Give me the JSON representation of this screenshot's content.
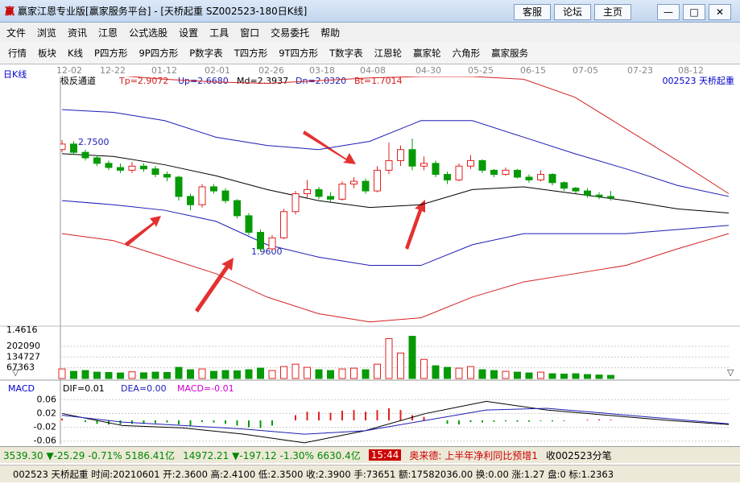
{
  "window": {
    "title": "赢家江恩专业版[赢家服务平台] - [天桥起重  SZ002523-180日K线]",
    "buttons": [
      "客服",
      "论坛",
      "主页"
    ]
  },
  "menu": [
    "文件",
    "浏览",
    "资讯",
    "江恩",
    "公式选股",
    "设置",
    "工具",
    "窗口",
    "交易委托",
    "帮助"
  ],
  "toolbar": [
    "行情",
    "板块",
    "K线",
    "P四方形",
    "9P四方形",
    "P数字表",
    "T四方形",
    "9T四方形",
    "T数字表",
    "江恩轮",
    "赢家轮",
    "六角形",
    "赢家服务"
  ],
  "chart": {
    "period": "日K线",
    "dates": [
      "12-02",
      "12-22",
      "01-12",
      "02-01",
      "02-26",
      "03-18",
      "04-08",
      "04-30",
      "05-25",
      "06-15",
      "07-05",
      "07-23",
      "08-12"
    ],
    "indicator": "极反通道",
    "params": [
      "Tp=2.9072",
      "Up=2.6680",
      "Md=2.3937",
      "Dn=2.0320",
      "Bt=1.7014"
    ],
    "stock": "002523  天桥起重",
    "annotations": [
      "2.7500",
      "1.9600"
    ],
    "price_low": "1.4616",
    "ylim": [
      1.39,
      3.23
    ],
    "candles": {
      "open": [
        2.7,
        2.74,
        2.68,
        2.64,
        2.6,
        2.57,
        2.55,
        2.58,
        2.56,
        2.52,
        2.5,
        2.36,
        2.3,
        2.43,
        2.4,
        2.33,
        2.22,
        2.1,
        1.98,
        2.06,
        2.25,
        2.38,
        2.41,
        2.36,
        2.34,
        2.45,
        2.47,
        2.4,
        2.55,
        2.62,
        2.7,
        2.58,
        2.6,
        2.52,
        2.48,
        2.58,
        2.62,
        2.55,
        2.52,
        2.55,
        2.5,
        2.48,
        2.52,
        2.46,
        2.42,
        2.4,
        2.37,
        2.36
      ],
      "close": [
        2.74,
        2.68,
        2.64,
        2.6,
        2.57,
        2.55,
        2.58,
        2.56,
        2.52,
        2.5,
        2.36,
        2.3,
        2.43,
        2.4,
        2.33,
        2.22,
        2.1,
        1.98,
        2.06,
        2.25,
        2.38,
        2.41,
        2.36,
        2.34,
        2.45,
        2.47,
        2.4,
        2.55,
        2.62,
        2.7,
        2.58,
        2.6,
        2.52,
        2.48,
        2.58,
        2.62,
        2.55,
        2.52,
        2.55,
        2.5,
        2.48,
        2.52,
        2.46,
        2.42,
        2.4,
        2.37,
        2.36,
        2.35
      ],
      "high": [
        2.77,
        2.76,
        2.7,
        2.66,
        2.62,
        2.6,
        2.61,
        2.6,
        2.58,
        2.54,
        2.51,
        2.38,
        2.45,
        2.45,
        2.42,
        2.34,
        2.24,
        2.12,
        2.08,
        2.27,
        2.4,
        2.48,
        2.43,
        2.39,
        2.47,
        2.5,
        2.49,
        2.58,
        2.75,
        2.73,
        2.78,
        2.65,
        2.62,
        2.54,
        2.6,
        2.66,
        2.63,
        2.56,
        2.57,
        2.56,
        2.52,
        2.55,
        2.53,
        2.47,
        2.43,
        2.42,
        2.39,
        2.4
      ],
      "low": [
        2.68,
        2.66,
        2.62,
        2.58,
        2.55,
        2.53,
        2.53,
        2.54,
        2.5,
        2.47,
        2.33,
        2.26,
        2.28,
        2.38,
        2.31,
        2.2,
        2.08,
        1.96,
        1.97,
        2.05,
        2.23,
        2.35,
        2.34,
        2.32,
        2.33,
        2.42,
        2.38,
        2.39,
        2.52,
        2.58,
        2.55,
        2.55,
        2.5,
        2.45,
        2.47,
        2.56,
        2.53,
        2.5,
        2.51,
        2.49,
        2.46,
        2.47,
        2.44,
        2.4,
        2.38,
        2.35,
        2.34,
        2.33
      ],
      "volume": [
        60000,
        45000,
        50000,
        40000,
        38000,
        35000,
        42000,
        36000,
        40000,
        38000,
        70000,
        55000,
        60000,
        45000,
        50000,
        48000,
        55000,
        65000,
        50000,
        75000,
        90000,
        70000,
        55000,
        50000,
        60000,
        65000,
        55000,
        90000,
        250000,
        160000,
        265000,
        120000,
        80000,
        70000,
        65000,
        75000,
        55000,
        50000,
        45000,
        40000,
        35000,
        40000,
        30000,
        28000,
        30000,
        25000,
        22000,
        20000
      ]
    },
    "bands": [
      {
        "color": "#d42020",
        "values": [
          3.26,
          3.24,
          3.21,
          3.19,
          3.18,
          3.2,
          3.22,
          3.23,
          3.23,
          3.21,
          3.08,
          2.85,
          2.62,
          2.38
        ]
      },
      {
        "color": "#1c1cb4",
        "values": [
          2.99,
          2.97,
          2.91,
          2.79,
          2.73,
          2.7,
          2.76,
          2.91,
          2.91,
          2.79,
          2.67,
          2.56,
          2.44,
          2.36
        ]
      },
      {
        "color": "#000000",
        "values": [
          2.67,
          2.65,
          2.59,
          2.51,
          2.41,
          2.33,
          2.28,
          2.3,
          2.41,
          2.43,
          2.38,
          2.33,
          2.27,
          2.24
        ]
      },
      {
        "color": "#1c1cb4",
        "values": [
          2.33,
          2.3,
          2.26,
          2.18,
          2.01,
          1.92,
          1.86,
          1.86,
          2.01,
          2.09,
          2.09,
          2.09,
          2.12,
          2.15
        ]
      },
      {
        "color": "#d42020",
        "values": [
          2.09,
          2.04,
          1.92,
          1.8,
          1.63,
          1.51,
          1.45,
          1.48,
          1.63,
          1.74,
          1.8,
          1.86,
          1.98,
          2.09
        ]
      }
    ],
    "vlim": [
      0,
      303000
    ],
    "vticks": [
      67363,
      134727,
      202090
    ],
    "macd": {
      "label": "MACD",
      "dif_label": "DIF=0.01",
      "dea_label": "DEA=0.00",
      "macd_label": "MACD=-0.01",
      "ylim": [
        -0.07,
        0.07
      ],
      "yticks": [
        0.06,
        0.02,
        -0.02,
        -0.06
      ],
      "bars": [
        0.005,
        0.0,
        -0.005,
        -0.01,
        -0.012,
        -0.012,
        -0.01,
        -0.01,
        -0.008,
        -0.006,
        -0.012,
        -0.015,
        -0.005,
        -0.006,
        -0.01,
        -0.015,
        -0.02,
        -0.022,
        -0.015,
        0.0,
        0.015,
        0.025,
        0.025,
        0.022,
        0.028,
        0.03,
        0.025,
        0.03,
        0.035,
        0.03,
        0.015,
        0.01,
        0.0,
        -0.01,
        -0.012,
        -0.005,
        -0.006,
        -0.004,
        -0.003,
        -0.004,
        -0.004,
        -0.002,
        -0.003,
        -0.002,
        0.0,
        0.002,
        0.003,
        0.002
      ],
      "dif": [
        0.02,
        -0.015,
        -0.022,
        -0.04,
        -0.065,
        -0.03,
        0.02,
        0.055,
        0.03,
        0.015,
        0.0,
        -0.012
      ],
      "dea": [
        0.015,
        -0.005,
        -0.015,
        -0.025,
        -0.04,
        -0.03,
        0.0,
        0.03,
        0.035,
        0.02,
        0.005,
        -0.01
      ]
    }
  },
  "status": {
    "sh": "3539.30 ▼-25.29 -0.71% 5186.41亿",
    "sz": "14972.21 ▼-197.12 -1.30% 6630.4亿",
    "time": "15:44",
    "news": "奥来德: 上半年净利同比预增1",
    "tick": "收002523分笔",
    "quote": "002523 天桥起重 时间:20210601 开:2.3600 高:2.4100 低:2.3500 收:2.3900 手:73651 额:17582036.00 换:0.00 涨:1.27 盘:0 标:1.2363"
  }
}
